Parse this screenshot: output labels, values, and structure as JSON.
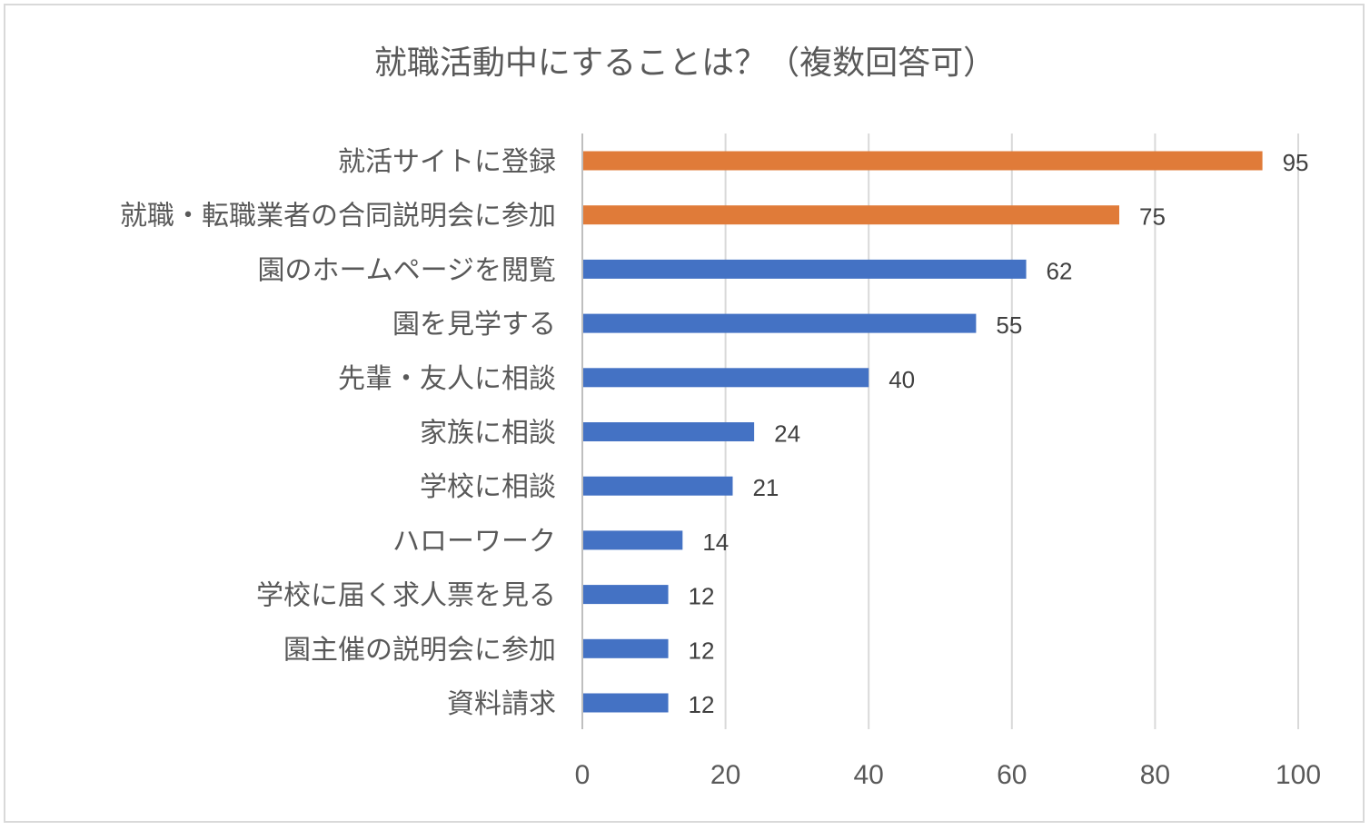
{
  "chart_data": {
    "type": "bar",
    "orientation": "horizontal",
    "title": "就職活動中にすることは？（複数回答可）",
    "categories": [
      "就活サイトに登録",
      "就職・転職業者の合同説明会に参加",
      "園のホームページを閲覧",
      "園を見学する",
      "先輩・友人に相談",
      "家族に相談",
      "学校に相談",
      "ハローワーク",
      "学校に届く求人票を見る",
      "園主催の説明会に参加",
      "資料請求"
    ],
    "values": [
      95,
      75,
      62,
      55,
      40,
      24,
      21,
      14,
      12,
      12,
      12
    ],
    "bar_colors": [
      "#E07B39",
      "#E07B39",
      "#4472C4",
      "#4472C4",
      "#4472C4",
      "#4472C4",
      "#4472C4",
      "#4472C4",
      "#4472C4",
      "#4472C4",
      "#4472C4"
    ],
    "xlim": [
      0,
      100
    ],
    "xticks": [
      0,
      20,
      40,
      60,
      80,
      100
    ],
    "grid": "vertical",
    "data_labels": true,
    "legend": "none"
  }
}
